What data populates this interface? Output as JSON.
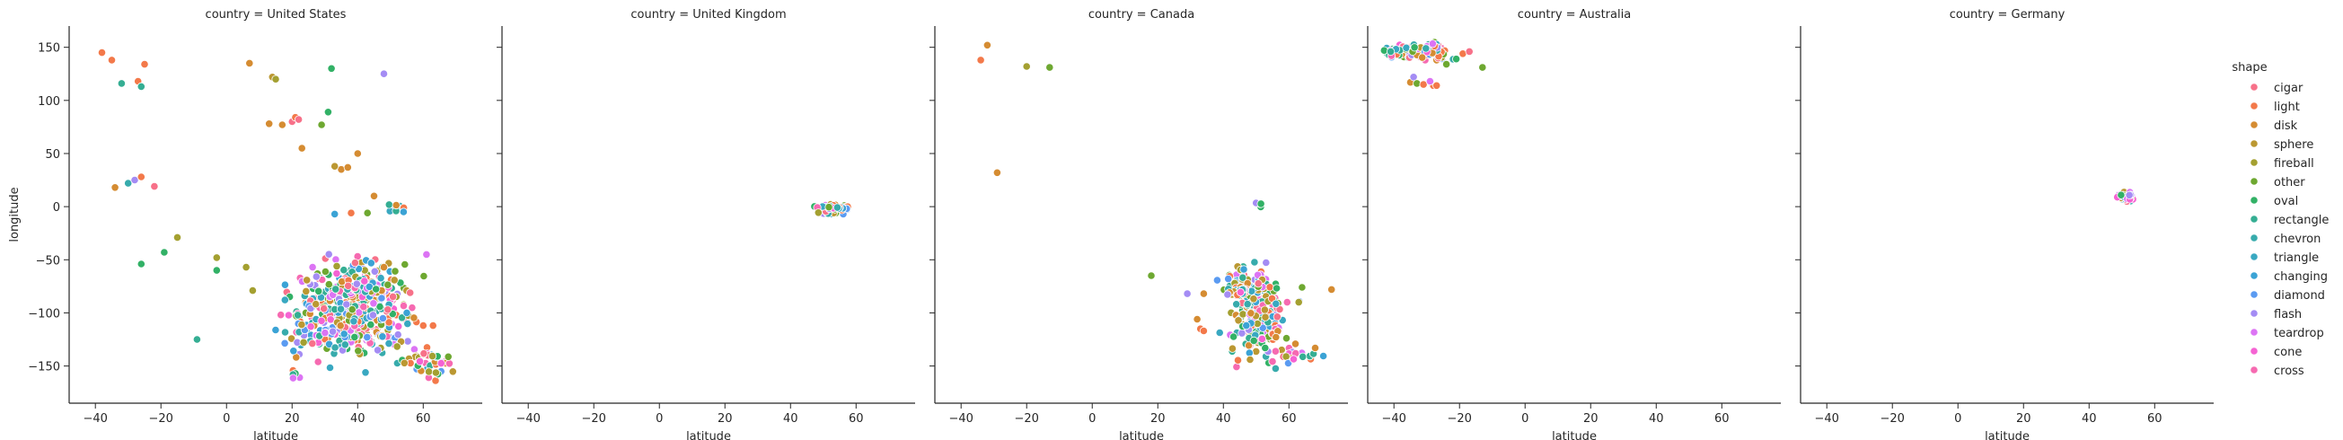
{
  "chart_data": {
    "type": "scatter",
    "facet_prefix": "country = ",
    "xlabel": "latitude",
    "ylabel": "longitude",
    "xlim": [
      -48,
      78
    ],
    "ylim": [
      -185,
      170
    ],
    "xticks": [
      -40,
      -20,
      0,
      20,
      40,
      60
    ],
    "yticks": [
      -150,
      -100,
      -50,
      0,
      50,
      100,
      150
    ],
    "grid": false,
    "legend_title": "shape",
    "legend_position": "right",
    "legend": [
      {
        "name": "cigar",
        "color": "#f77189"
      },
      {
        "name": "light",
        "color": "#f3794a"
      },
      {
        "name": "disk",
        "color": "#d58c32"
      },
      {
        "name": "sphere",
        "color": "#bb9832"
      },
      {
        "name": "fireball",
        "color": "#a4a031"
      },
      {
        "name": "other",
        "color": "#6ea831"
      },
      {
        "name": "oval",
        "color": "#32b166"
      },
      {
        "name": "rectangle",
        "color": "#35ae93"
      },
      {
        "name": "chevron",
        "color": "#37abac"
      },
      {
        "name": "triangle",
        "color": "#39a8c1"
      },
      {
        "name": "changing",
        "color": "#3ba3d5"
      },
      {
        "name": "diamond",
        "color": "#5b9bf1"
      },
      {
        "name": "flash",
        "color": "#a48cf4"
      },
      {
        "name": "teardrop",
        "color": "#dc74f4"
      },
      {
        "name": "cone",
        "color": "#f563d3"
      },
      {
        "name": "cross",
        "color": "#f66ab1"
      }
    ],
    "facets": [
      {
        "country": "United States",
        "clusters": [
          {
            "center": [
              38,
              -100
            ],
            "spread": [
              9,
              22
            ],
            "count": 460
          },
          {
            "center": [
              43,
              -75
            ],
            "spread": [
              3,
              5
            ],
            "count": 45
          },
          {
            "center": [
              62,
              -150
            ],
            "spread": [
              4,
              10
            ],
            "count": 40
          },
          {
            "center": [
              21,
              -158
            ],
            "spread": [
              1,
              2
            ],
            "count": 6
          },
          {
            "center": [
              52,
              -2
            ],
            "spread": [
              2,
              4
            ],
            "count": 10
          }
        ],
        "points": [
          {
            "x": -38,
            "y": 145,
            "s": "light"
          },
          {
            "x": -35,
            "y": 138,
            "s": "light"
          },
          {
            "x": -27,
            "y": 118,
            "s": "light"
          },
          {
            "x": -25,
            "y": 134,
            "s": "light"
          },
          {
            "x": -32,
            "y": 116,
            "s": "rectangle"
          },
          {
            "x": -26,
            "y": 113,
            "s": "rectangle"
          },
          {
            "x": -34,
            "y": 18,
            "s": "disk"
          },
          {
            "x": -30,
            "y": 22,
            "s": "chevron"
          },
          {
            "x": -28,
            "y": 25,
            "s": "flash"
          },
          {
            "x": -26,
            "y": 28,
            "s": "light"
          },
          {
            "x": -22,
            "y": 19,
            "s": "cigar"
          },
          {
            "x": -26,
            "y": -54,
            "s": "oval"
          },
          {
            "x": -19,
            "y": -43,
            "s": "oval"
          },
          {
            "x": -15,
            "y": -29,
            "s": "fireball"
          },
          {
            "x": -9,
            "y": -125,
            "s": "rectangle"
          },
          {
            "x": -3,
            "y": -48,
            "s": "fireball"
          },
          {
            "x": -3,
            "y": -60,
            "s": "oval"
          },
          {
            "x": 6,
            "y": -57,
            "s": "fireball"
          },
          {
            "x": 8,
            "y": -79,
            "s": "fireball"
          },
          {
            "x": 7,
            "y": 135,
            "s": "disk"
          },
          {
            "x": 14,
            "y": 122,
            "s": "sphere"
          },
          {
            "x": 15,
            "y": 120,
            "s": "fireball"
          },
          {
            "x": 13,
            "y": 78,
            "s": "disk"
          },
          {
            "x": 17,
            "y": 77,
            "s": "disk"
          },
          {
            "x": 20,
            "y": 80,
            "s": "cigar"
          },
          {
            "x": 21,
            "y": 84,
            "s": "light"
          },
          {
            "x": 22,
            "y": 82,
            "s": "cigar"
          },
          {
            "x": 23,
            "y": 55,
            "s": "disk"
          },
          {
            "x": 29,
            "y": 77,
            "s": "other"
          },
          {
            "x": 31,
            "y": 89,
            "s": "oval"
          },
          {
            "x": 32,
            "y": 130,
            "s": "oval"
          },
          {
            "x": 35,
            "y": 35,
            "s": "disk"
          },
          {
            "x": 33,
            "y": 38,
            "s": "sphere"
          },
          {
            "x": 37,
            "y": 37,
            "s": "disk"
          },
          {
            "x": 40,
            "y": 50,
            "s": "disk"
          },
          {
            "x": 45,
            "y": 10,
            "s": "disk"
          },
          {
            "x": 48,
            "y": 125,
            "s": "flash"
          },
          {
            "x": 33,
            "y": -7,
            "s": "changing"
          },
          {
            "x": 38,
            "y": -6,
            "s": "light"
          },
          {
            "x": 43,
            "y": -6,
            "s": "other"
          },
          {
            "x": 61,
            "y": -45,
            "s": "teardrop"
          },
          {
            "x": 54,
            "y": -5,
            "s": "changing"
          },
          {
            "x": 55,
            "y": -100,
            "s": "changing"
          },
          {
            "x": 60,
            "y": -112,
            "s": "light"
          },
          {
            "x": 63,
            "y": -112,
            "s": "light"
          },
          {
            "x": 48,
            "y": -57,
            "s": "disk"
          }
        ]
      },
      {
        "country": "United Kingdom",
        "clusters": [
          {
            "center": [
              53,
              -2
            ],
            "spread": [
              2.2,
              2.5
            ],
            "count": 70
          }
        ],
        "points": []
      },
      {
        "country": "Canada",
        "clusters": [
          {
            "center": [
              51,
              -105
            ],
            "spread": [
              4,
              18
            ],
            "count": 200
          },
          {
            "center": [
              46,
              -70
            ],
            "spread": [
              3,
              7
            ],
            "count": 50
          },
          {
            "center": [
              44,
              -80
            ],
            "spread": [
              2,
              3
            ],
            "count": 30
          },
          {
            "center": [
              62,
              -138
            ],
            "spread": [
              3,
              5
            ],
            "count": 15
          },
          {
            "center": [
              52,
              0
            ],
            "spread": [
              1,
              2
            ],
            "count": 4
          }
        ],
        "points": [
          {
            "x": -34,
            "y": 138,
            "s": "light"
          },
          {
            "x": -32,
            "y": 152,
            "s": "disk"
          },
          {
            "x": -20,
            "y": 132,
            "s": "fireball"
          },
          {
            "x": -13,
            "y": 131,
            "s": "other"
          },
          {
            "x": -29,
            "y": 32,
            "s": "disk"
          },
          {
            "x": 18,
            "y": -65,
            "s": "other"
          },
          {
            "x": 29,
            "y": -82,
            "s": "flash"
          },
          {
            "x": 34,
            "y": -82,
            "s": "disk"
          },
          {
            "x": 32,
            "y": -106,
            "s": "disk"
          },
          {
            "x": 33,
            "y": -115,
            "s": "light"
          },
          {
            "x": 34,
            "y": -117,
            "s": "light"
          },
          {
            "x": 47,
            "y": -112,
            "s": "changing"
          },
          {
            "x": 73,
            "y": -78,
            "s": "disk"
          },
          {
            "x": 68,
            "y": -133,
            "s": "disk"
          },
          {
            "x": 64,
            "y": -76,
            "s": "other"
          },
          {
            "x": 63,
            "y": -90,
            "s": "fireball"
          }
        ]
      },
      {
        "country": "Australia",
        "clusters": [
          {
            "center": [
              -32,
              146
            ],
            "spread": [
              5,
              4
            ],
            "count": 110
          }
        ],
        "points": [
          {
            "x": -43,
            "y": 147,
            "s": "oval"
          },
          {
            "x": -41,
            "y": 146,
            "s": "rectangle"
          },
          {
            "x": -35,
            "y": 117,
            "s": "disk"
          },
          {
            "x": -34,
            "y": 122,
            "s": "flash"
          },
          {
            "x": -33,
            "y": 116,
            "s": "other"
          },
          {
            "x": -31,
            "y": 115,
            "s": "light"
          },
          {
            "x": -28,
            "y": 114,
            "s": "light"
          },
          {
            "x": -29,
            "y": 118,
            "s": "teardrop"
          },
          {
            "x": -27,
            "y": 114,
            "s": "light"
          },
          {
            "x": -24,
            "y": 134,
            "s": "other"
          },
          {
            "x": -21,
            "y": 139,
            "s": "oval"
          },
          {
            "x": -19,
            "y": 144,
            "s": "light"
          },
          {
            "x": -13,
            "y": 131,
            "s": "other"
          },
          {
            "x": -17,
            "y": 146,
            "s": "cigar"
          }
        ]
      },
      {
        "country": "Germany",
        "clusters": [
          {
            "center": [
              51,
              10
            ],
            "spread": [
              1.5,
              2.3
            ],
            "count": 35
          }
        ],
        "points": []
      }
    ]
  }
}
